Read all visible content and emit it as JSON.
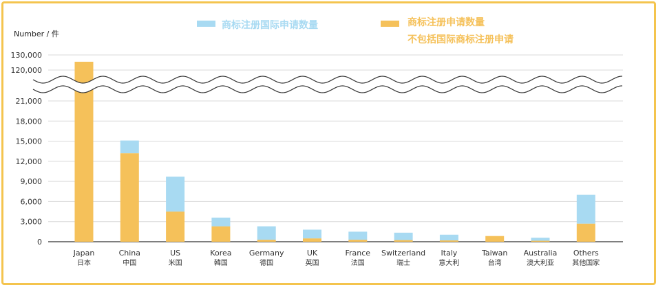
{
  "chart_data": {
    "type": "bar",
    "stacked": true,
    "title": "",
    "ylabel": "Number / 件",
    "ylim": [
      0,
      130000
    ],
    "axis_break": [
      21000,
      120000
    ],
    "lower_ticks": [
      "0",
      "3,000",
      "6,000",
      "9,000",
      "12,000",
      "15,000",
      "18,000",
      "21,000"
    ],
    "lower_tick_values": [
      0,
      3000,
      6000,
      9000,
      12000,
      15000,
      18000,
      21000
    ],
    "upper_ticks": [
      "120,000",
      "130,000"
    ],
    "upper_tick_values": [
      120000,
      130000
    ],
    "grid": true,
    "legend_position": "top",
    "categories": [
      {
        "en": "Japan",
        "zh": "日本"
      },
      {
        "en": "China",
        "zh": "中国"
      },
      {
        "en": "US",
        "zh": "米国"
      },
      {
        "en": "Korea",
        "zh": "韓国"
      },
      {
        "en": "Germany",
        "zh": "德国"
      },
      {
        "en": "UK",
        "zh": "英国"
      },
      {
        "en": "France",
        "zh": "法国"
      },
      {
        "en": "Switzerland",
        "zh": "瑞士"
      },
      {
        "en": "Italy",
        "zh": "意大利"
      },
      {
        "en": "Taiwan",
        "zh": "台湾"
      },
      {
        "en": "Australia",
        "zh": "澳大利亚"
      },
      {
        "en": "Others",
        "zh": "其他国家"
      }
    ],
    "series": [
      {
        "name": "商标注册申请数量\n不包括国际商标注册申请",
        "legend_lines": [
          "商标注册申请数量",
          "不包括国际商标注册申请"
        ],
        "color": "#f5c15a",
        "values": [
          125500,
          13200,
          4500,
          2300,
          300,
          500,
          300,
          250,
          200,
          850,
          150,
          2700
        ]
      },
      {
        "name": "商标注册国际申请数量",
        "legend_lines": [
          "商标注册国际申请数量"
        ],
        "color": "#a8daf2",
        "values": [
          0,
          1900,
          5200,
          1300,
          2000,
          1300,
          1200,
          1100,
          850,
          0,
          450,
          4300
        ]
      }
    ]
  }
}
